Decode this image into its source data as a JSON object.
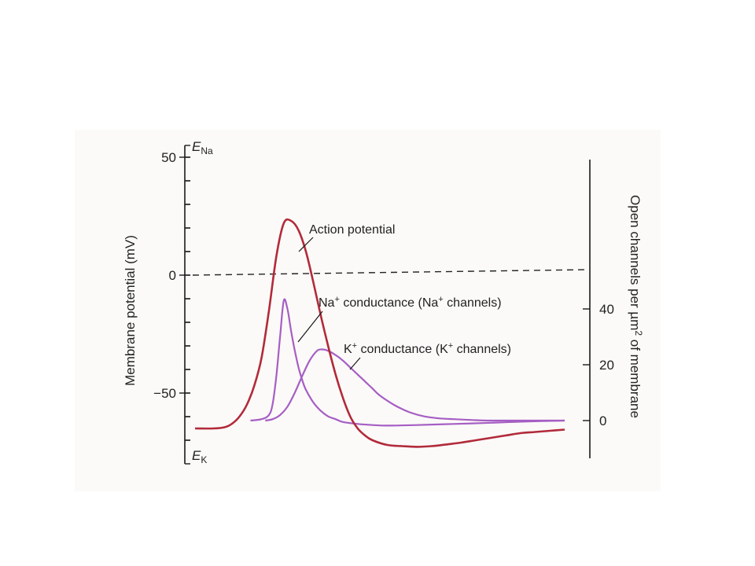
{
  "chart_data": {
    "type": "line",
    "title": "",
    "x_axis": {
      "label": "",
      "shown": false
    },
    "y_left": {
      "label": "Membrane potential (mV)",
      "ylim": [
        -75,
        52
      ],
      "ticks": [
        {
          "value": 50,
          "label": "50"
        },
        {
          "value": 0,
          "label": "0"
        },
        {
          "value": -50,
          "label": "−50"
        }
      ],
      "minor_tick_step": 10,
      "reference_labels": {
        "ENa": {
          "value": 52,
          "main": "E",
          "sub": "Na"
        },
        "EK": {
          "value": -74,
          "main": "E",
          "sub": "K"
        }
      }
    },
    "y_right": {
      "label_parts": [
        "Open channels per µm",
        "2",
        " of membrane"
      ],
      "ylim": [
        -15,
        95
      ],
      "ticks": [
        {
          "value": 40,
          "label": "40"
        },
        {
          "value": 20,
          "label": "20"
        },
        {
          "value": 0,
          "label": "0"
        }
      ]
    },
    "reference_line": {
      "axis": "left",
      "y": 0,
      "style": "dashed"
    },
    "series": [
      {
        "id": "action_potential",
        "axis": "left",
        "color": "#b22a3a",
        "x": [
          0,
          5,
          8,
          10,
          12,
          14,
          16,
          18,
          20,
          22,
          24,
          26,
          28,
          30,
          32,
          34,
          36,
          38,
          40,
          42,
          44,
          46,
          48,
          52,
          56,
          60,
          64,
          68,
          72,
          76,
          80,
          84,
          88,
          92,
          96,
          100
        ],
        "y": [
          -65,
          -65,
          -64.5,
          -63,
          -60,
          -55,
          -47,
          -35,
          -15,
          8,
          22,
          23,
          19,
          10,
          -3,
          -17,
          -30,
          -42,
          -52,
          -60,
          -65,
          -68,
          -70,
          -72,
          -72.5,
          -72.8,
          -72.5,
          -71.8,
          -71,
          -70,
          -69,
          -68,
          -67,
          -66.5,
          -66,
          -65.5
        ]
      },
      {
        "id": "na_conductance",
        "axis": "right",
        "color": "#a65ec4",
        "x": [
          15,
          18,
          20,
          21,
          22,
          23,
          24,
          25,
          26,
          27,
          28,
          29,
          30,
          32,
          34,
          36,
          38,
          40,
          44,
          48,
          52,
          60,
          70,
          80,
          90,
          100
        ],
        "y": [
          0,
          0.5,
          2,
          6,
          16,
          30,
          43,
          40,
          32,
          25,
          19,
          14.5,
          11,
          6.5,
          3.5,
          1.5,
          0.5,
          -0.5,
          -1.2,
          -1.6,
          -1.8,
          -1.6,
          -1.2,
          -0.8,
          -0.3,
          0
        ]
      },
      {
        "id": "k_conductance",
        "axis": "right",
        "color": "#a65ec4",
        "x": [
          19,
          21,
          23,
          25,
          27,
          29,
          31,
          33,
          34.5,
          36,
          38,
          40,
          42,
          44,
          46,
          48,
          50,
          54,
          58,
          62,
          66,
          70,
          75,
          80,
          88,
          100
        ],
        "y": [
          0,
          0.5,
          2,
          5,
          10,
          16,
          21.5,
          25,
          25.5,
          25,
          23.5,
          21.5,
          19,
          16.5,
          14,
          11.5,
          9,
          5.5,
          3,
          1.5,
          0.8,
          0.5,
          0.2,
          0,
          0,
          0
        ]
      }
    ],
    "annotations": [
      {
        "id": "ap",
        "text": "Action potential"
      },
      {
        "id": "na",
        "text_parts": [
          "Na",
          "+",
          " conductance (Na",
          "+",
          " channels)"
        ]
      },
      {
        "id": "k",
        "text_parts": [
          "K",
          "+",
          " conductance (K",
          "+",
          " channels)"
        ]
      }
    ]
  }
}
